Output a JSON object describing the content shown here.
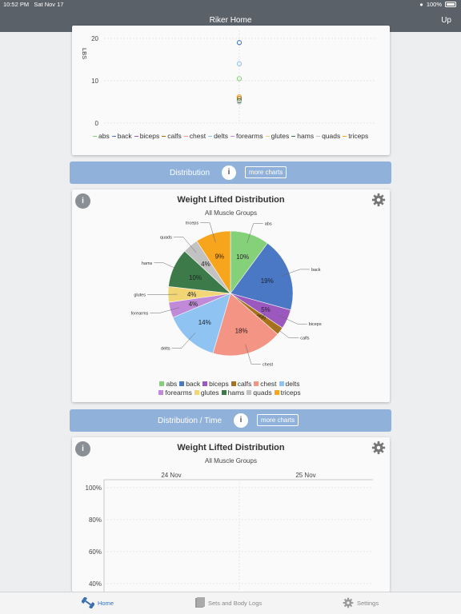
{
  "status_bar": {
    "time": "10:52 PM",
    "date": "Sat Nov 17",
    "battery": "100%"
  },
  "nav": {
    "title": "Riker Home",
    "right_button": "Up"
  },
  "scatter_card": {
    "ylabel": "LBS",
    "legend": [
      "abs",
      "back",
      "biceps",
      "calfs",
      "chest",
      "delts",
      "forearms",
      "glutes",
      "hams",
      "quads",
      "triceps"
    ]
  },
  "section_distribution": {
    "label": "Distribution",
    "info": "i",
    "more": "more charts"
  },
  "pie_card": {
    "info": "i",
    "title": "Weight Lifted Distribution",
    "subtitle": "All Muscle Groups",
    "legend": [
      "abs",
      "back",
      "biceps",
      "calfs",
      "chest",
      "delts",
      "forearms",
      "glutes",
      "hams",
      "quads",
      "triceps"
    ]
  },
  "section_dist_time": {
    "label": "Distribution / Time",
    "info": "i",
    "more": "more charts"
  },
  "time_card": {
    "info": "i",
    "title": "Weight Lifted Distribution",
    "subtitle": "All Muscle Groups"
  },
  "tabs": [
    {
      "label": "Home",
      "icon": "dumbbell-icon",
      "active": true
    },
    {
      "label": "Sets and Body Logs",
      "icon": "logs-icon",
      "active": false
    },
    {
      "label": "Settings",
      "icon": "gear-icon",
      "active": false
    }
  ],
  "colors": {
    "abs": "#85d17a",
    "back": "#4a78c4",
    "biceps": "#9b59c0",
    "calfs": "#a8721c",
    "chest": "#f49484",
    "delts": "#8ec3f2",
    "forearms": "#c08ad8",
    "glutes": "#f2d675",
    "hams": "#3c7a4a",
    "quads": "#c2c2c2",
    "triceps": "#f7a51c"
  },
  "chart_data": [
    {
      "type": "scatter",
      "ylabel": "LBS",
      "ylim": [
        0,
        20
      ],
      "yticks": [
        "0",
        "10",
        "20"
      ],
      "series": [
        {
          "name": "back",
          "values": [
            19
          ]
        },
        {
          "name": "delts",
          "values": [
            14
          ]
        },
        {
          "name": "abs",
          "values": [
            10.5
          ]
        },
        {
          "name": "triceps",
          "values": [
            6.2
          ]
        },
        {
          "name": "calfs",
          "values": [
            5.8
          ]
        },
        {
          "name": "hams",
          "values": [
            5.3
          ]
        },
        {
          "name": "quads",
          "values": [
            5
          ]
        }
      ]
    },
    {
      "type": "pie",
      "title": "Weight Lifted Distribution",
      "subtitle": "All Muscle Groups",
      "categories": [
        "abs",
        "back",
        "biceps",
        "calfs",
        "chest",
        "delts",
        "forearms",
        "glutes",
        "hams",
        "quads",
        "triceps"
      ],
      "values": [
        10,
        19,
        5,
        2,
        18,
        14,
        4,
        4,
        10,
        4,
        9
      ],
      "value_labels": [
        "10%",
        "19%",
        "5%",
        "2%",
        "18%",
        "14%",
        "4%",
        "4%",
        "10%",
        "4%",
        "9%"
      ]
    },
    {
      "type": "area",
      "title": "Weight Lifted Distribution",
      "subtitle": "All Muscle Groups",
      "x": [
        "24 Nov",
        "25 Nov"
      ],
      "yticks": [
        "100%",
        "80%",
        "60%",
        "40%"
      ]
    }
  ]
}
